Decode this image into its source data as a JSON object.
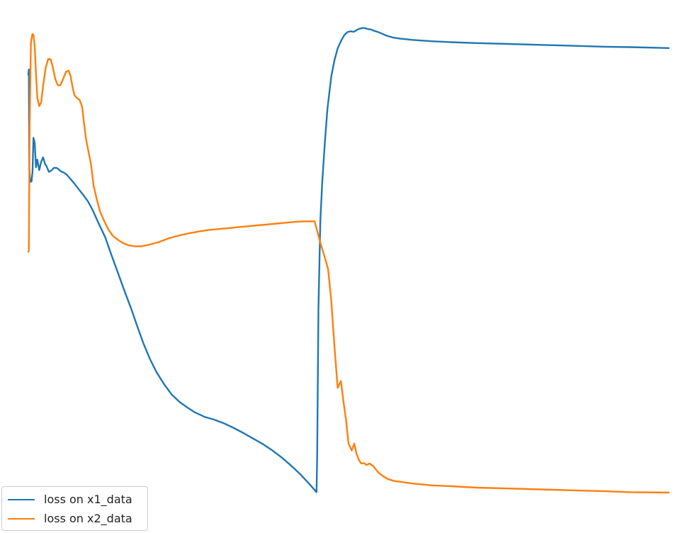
{
  "chart_data": {
    "type": "line",
    "title": "",
    "xlabel": "",
    "ylabel": "",
    "axes_visible": false,
    "grid": false,
    "legend_position": "lower-left",
    "xlim": [
      0,
      1000
    ],
    "ylim": [
      0,
      100
    ],
    "series": [
      {
        "name": "loss on x1_data",
        "color": "#1f77b4",
        "points": [
          [
            0,
            87.1
          ],
          [
            0.8,
            88.3
          ],
          [
            1.6,
            66.4
          ],
          [
            3,
            63.5
          ],
          [
            5,
            63.6
          ],
          [
            6.5,
            65.7
          ],
          [
            8,
            73.2
          ],
          [
            10,
            72.1
          ],
          [
            12,
            66.7
          ],
          [
            14,
            68.4
          ],
          [
            17,
            66.1
          ],
          [
            20,
            67.9
          ],
          [
            23,
            68.9
          ],
          [
            26,
            67.5
          ],
          [
            29,
            66.8
          ],
          [
            32,
            65.7
          ],
          [
            36,
            66.0
          ],
          [
            40,
            66.6
          ],
          [
            44,
            66.6
          ],
          [
            47,
            66.3
          ],
          [
            51,
            65.8
          ],
          [
            55,
            65.6
          ],
          [
            60,
            65.1
          ],
          [
            66,
            64.1
          ],
          [
            72,
            63.1
          ],
          [
            78,
            62.0
          ],
          [
            86,
            60.6
          ],
          [
            93,
            59.2
          ],
          [
            100,
            57.4
          ],
          [
            110,
            54.3
          ],
          [
            120,
            51.3
          ],
          [
            130,
            47.3
          ],
          [
            140,
            43.4
          ],
          [
            150,
            39.5
          ],
          [
            160,
            35.8
          ],
          [
            170,
            31.7
          ],
          [
            180,
            27.8
          ],
          [
            190,
            24.4
          ],
          [
            200,
            21.6
          ],
          [
            212,
            18.9
          ],
          [
            224,
            16.6
          ],
          [
            236,
            15.0
          ],
          [
            248,
            13.8
          ],
          [
            260,
            12.7
          ],
          [
            275,
            11.7
          ],
          [
            290,
            11.1
          ],
          [
            305,
            10.3
          ],
          [
            320,
            9.3
          ],
          [
            335,
            8.2
          ],
          [
            350,
            7.0
          ],
          [
            365,
            5.8
          ],
          [
            380,
            4.4
          ],
          [
            395,
            2.8
          ],
          [
            410,
            1.0
          ],
          [
            425,
            -1.0
          ],
          [
            440,
            -3.3
          ],
          [
            450,
            -4.9
          ],
          [
            451,
            2.7
          ],
          [
            453,
            35.5
          ],
          [
            456,
            55.0
          ],
          [
            459,
            63.5
          ],
          [
            463,
            72.3
          ],
          [
            467,
            79.6
          ],
          [
            473,
            86.7
          ],
          [
            478,
            90.3
          ],
          [
            483,
            92.9
          ],
          [
            488,
            94.5
          ],
          [
            493,
            95.8
          ],
          [
            498,
            96.5
          ],
          [
            503,
            96.7
          ],
          [
            508,
            96.6
          ],
          [
            511,
            96.8
          ],
          [
            514,
            97.1
          ],
          [
            518,
            97.3
          ],
          [
            522,
            97.4
          ],
          [
            525,
            97.4
          ],
          [
            530,
            97.2
          ],
          [
            535,
            97.1
          ],
          [
            540,
            96.8
          ],
          [
            545,
            96.6
          ],
          [
            550,
            96.3
          ],
          [
            560,
            95.7
          ],
          [
            570,
            95.3
          ],
          [
            580,
            95.1
          ],
          [
            600,
            94.8
          ],
          [
            630,
            94.5
          ],
          [
            660,
            94.3
          ],
          [
            700,
            94.1
          ],
          [
            750,
            93.9
          ],
          [
            800,
            93.7
          ],
          [
            850,
            93.5
          ],
          [
            900,
            93.3
          ],
          [
            940,
            93.2
          ],
          [
            1000,
            93.0
          ]
        ]
      },
      {
        "name": "loss on x2_data",
        "color": "#ff7f0e",
        "points": [
          [
            0,
            48.1
          ],
          [
            0.8,
            48.3
          ],
          [
            2,
            75.2
          ],
          [
            4,
            94.1
          ],
          [
            6,
            95.9
          ],
          [
            7,
            96.1
          ],
          [
            8,
            95.9
          ],
          [
            10,
            93.4
          ],
          [
            12,
            87.3
          ],
          [
            14,
            82.0
          ],
          [
            17,
            80.2
          ],
          [
            20,
            81.0
          ],
          [
            23,
            84.6
          ],
          [
            27,
            88.6
          ],
          [
            31,
            90.6
          ],
          [
            35,
            90.5
          ],
          [
            38,
            88.9
          ],
          [
            42,
            86.2
          ],
          [
            46,
            84.8
          ],
          [
            50,
            84.8
          ],
          [
            54,
            86.1
          ],
          [
            59,
            87.8
          ],
          [
            63,
            88.0
          ],
          [
            66,
            86.8
          ],
          [
            69,
            84.4
          ],
          [
            72,
            82.6
          ],
          [
            76,
            82.0
          ],
          [
            80,
            81.6
          ],
          [
            84,
            80.1
          ],
          [
            87,
            76.4
          ],
          [
            90,
            73.0
          ],
          [
            94,
            70.1
          ],
          [
            98,
            67.2
          ],
          [
            102,
            62.6
          ],
          [
            107,
            59.6
          ],
          [
            112,
            57.0
          ],
          [
            118,
            55.0
          ],
          [
            125,
            53.0
          ],
          [
            132,
            51.6
          ],
          [
            140,
            50.7
          ],
          [
            148,
            50.0
          ],
          [
            157,
            49.5
          ],
          [
            166,
            49.3
          ],
          [
            177,
            49.3
          ],
          [
            190,
            49.7
          ],
          [
            205,
            50.3
          ],
          [
            220,
            51.1
          ],
          [
            236,
            51.7
          ],
          [
            252,
            52.2
          ],
          [
            267,
            52.6
          ],
          [
            282,
            52.9
          ],
          [
            297,
            53.1
          ],
          [
            312,
            53.3
          ],
          [
            327,
            53.5
          ],
          [
            342,
            53.7
          ],
          [
            357,
            53.9
          ],
          [
            372,
            54.1
          ],
          [
            387,
            54.3
          ],
          [
            402,
            54.5
          ],
          [
            417,
            54.7
          ],
          [
            432,
            54.8
          ],
          [
            447,
            54.8
          ],
          [
            452,
            52.2
          ],
          [
            457,
            49.6
          ],
          [
            462,
            47.3
          ],
          [
            468,
            44.3
          ],
          [
            473,
            37.3
          ],
          [
            478,
            27.3
          ],
          [
            483,
            18.1
          ],
          [
            488,
            19.6
          ],
          [
            492,
            15.1
          ],
          [
            496,
            11.1
          ],
          [
            500,
            5.8
          ],
          [
            505,
            4.3
          ],
          [
            509,
            5.8
          ],
          [
            512,
            3.8
          ],
          [
            516,
            2.2
          ],
          [
            520,
            1.4
          ],
          [
            524,
            1.5
          ],
          [
            528,
            1.1
          ],
          [
            533,
            1.4
          ],
          [
            539,
            0.8
          ],
          [
            546,
            -0.5
          ],
          [
            553,
            -1.3
          ],
          [
            560,
            -1.9
          ],
          [
            570,
            -2.4
          ],
          [
            580,
            -2.6
          ],
          [
            600,
            -3.0
          ],
          [
            630,
            -3.4
          ],
          [
            660,
            -3.6
          ],
          [
            700,
            -3.9
          ],
          [
            750,
            -4.1
          ],
          [
            800,
            -4.3
          ],
          [
            850,
            -4.5
          ],
          [
            900,
            -4.7
          ],
          [
            940,
            -4.9
          ],
          [
            1000,
            -5.0
          ]
        ]
      }
    ]
  }
}
